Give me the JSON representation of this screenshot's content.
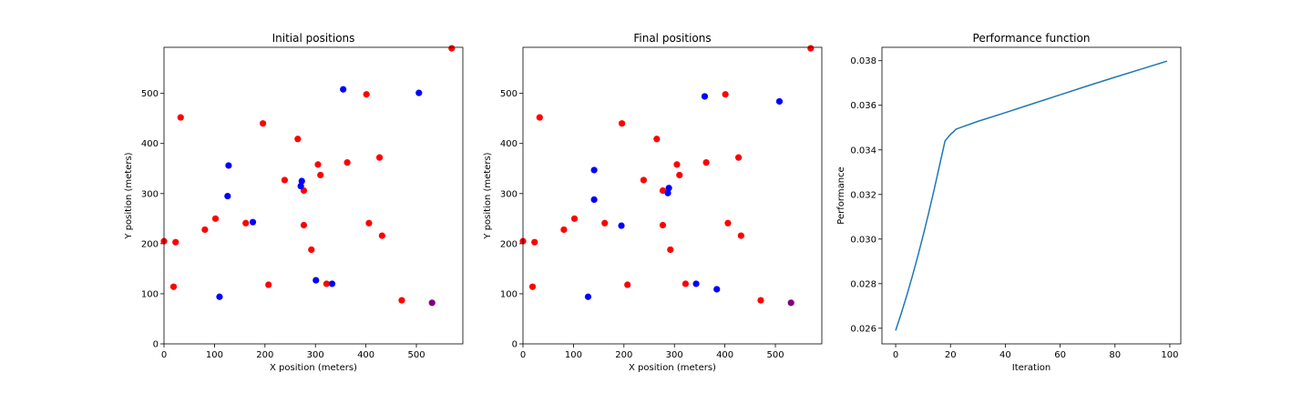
{
  "chart_data": [
    {
      "type": "scatter",
      "title": "Initial positions",
      "xlabel": "X position (meters)",
      "ylabel": "Y position (meters)",
      "xlim": [
        0,
        592
      ],
      "ylim": [
        0,
        592
      ],
      "xticks": [
        0,
        100,
        200,
        300,
        400,
        500
      ],
      "yticks": [
        0,
        100,
        200,
        300,
        400,
        500
      ],
      "grid": false,
      "colors": {
        "red": "#ff0000",
        "blue": "#0000ff",
        "purple": "#800080"
      },
      "points": [
        {
          "x": 570,
          "y": 590,
          "color": "red"
        },
        {
          "x": 33,
          "y": 452,
          "color": "red"
        },
        {
          "x": 196,
          "y": 440,
          "color": "red"
        },
        {
          "x": 401,
          "y": 498,
          "color": "red"
        },
        {
          "x": 265,
          "y": 409,
          "color": "red"
        },
        {
          "x": 427,
          "y": 372,
          "color": "red"
        },
        {
          "x": 363,
          "y": 362,
          "color": "red"
        },
        {
          "x": 305,
          "y": 358,
          "color": "red"
        },
        {
          "x": 310,
          "y": 337,
          "color": "red"
        },
        {
          "x": 239,
          "y": 327,
          "color": "red"
        },
        {
          "x": 277,
          "y": 306,
          "color": "red"
        },
        {
          "x": 102,
          "y": 250,
          "color": "red"
        },
        {
          "x": 162,
          "y": 241,
          "color": "red"
        },
        {
          "x": 277,
          "y": 237,
          "color": "red"
        },
        {
          "x": 406,
          "y": 241,
          "color": "red"
        },
        {
          "x": 81,
          "y": 228,
          "color": "red"
        },
        {
          "x": 432,
          "y": 216,
          "color": "red"
        },
        {
          "x": 0,
          "y": 205,
          "color": "red"
        },
        {
          "x": 23,
          "y": 203,
          "color": "red"
        },
        {
          "x": 292,
          "y": 188,
          "color": "red"
        },
        {
          "x": 19,
          "y": 114,
          "color": "red"
        },
        {
          "x": 207,
          "y": 118,
          "color": "red"
        },
        {
          "x": 322,
          "y": 120,
          "color": "red"
        },
        {
          "x": 471,
          "y": 87,
          "color": "red"
        },
        {
          "x": 355,
          "y": 508,
          "color": "blue"
        },
        {
          "x": 505,
          "y": 501,
          "color": "blue"
        },
        {
          "x": 128,
          "y": 356,
          "color": "blue"
        },
        {
          "x": 273,
          "y": 325,
          "color": "blue"
        },
        {
          "x": 271,
          "y": 315,
          "color": "blue"
        },
        {
          "x": 126,
          "y": 295,
          "color": "blue"
        },
        {
          "x": 176,
          "y": 243,
          "color": "blue"
        },
        {
          "x": 301,
          "y": 127,
          "color": "blue"
        },
        {
          "x": 333,
          "y": 120,
          "color": "blue"
        },
        {
          "x": 110,
          "y": 94,
          "color": "blue"
        },
        {
          "x": 531,
          "y": 82,
          "color": "purple"
        }
      ]
    },
    {
      "type": "scatter",
      "title": "Final positions",
      "xlabel": "X position (meters)",
      "ylabel": "Y position (meters)",
      "xlim": [
        0,
        592
      ],
      "ylim": [
        0,
        592
      ],
      "xticks": [
        0,
        100,
        200,
        300,
        400,
        500
      ],
      "yticks": [
        0,
        100,
        200,
        300,
        400,
        500
      ],
      "grid": false,
      "colors": {
        "red": "#ff0000",
        "blue": "#0000ff",
        "purple": "#800080"
      },
      "points": [
        {
          "x": 570,
          "y": 590,
          "color": "red"
        },
        {
          "x": 33,
          "y": 452,
          "color": "red"
        },
        {
          "x": 196,
          "y": 440,
          "color": "red"
        },
        {
          "x": 401,
          "y": 498,
          "color": "red"
        },
        {
          "x": 265,
          "y": 409,
          "color": "red"
        },
        {
          "x": 427,
          "y": 372,
          "color": "red"
        },
        {
          "x": 363,
          "y": 362,
          "color": "red"
        },
        {
          "x": 305,
          "y": 358,
          "color": "red"
        },
        {
          "x": 310,
          "y": 337,
          "color": "red"
        },
        {
          "x": 239,
          "y": 327,
          "color": "red"
        },
        {
          "x": 277,
          "y": 306,
          "color": "red"
        },
        {
          "x": 102,
          "y": 250,
          "color": "red"
        },
        {
          "x": 162,
          "y": 241,
          "color": "red"
        },
        {
          "x": 277,
          "y": 237,
          "color": "red"
        },
        {
          "x": 406,
          "y": 241,
          "color": "red"
        },
        {
          "x": 81,
          "y": 228,
          "color": "red"
        },
        {
          "x": 432,
          "y": 216,
          "color": "red"
        },
        {
          "x": 0,
          "y": 205,
          "color": "red"
        },
        {
          "x": 23,
          "y": 203,
          "color": "red"
        },
        {
          "x": 292,
          "y": 188,
          "color": "red"
        },
        {
          "x": 19,
          "y": 114,
          "color": "red"
        },
        {
          "x": 207,
          "y": 118,
          "color": "red"
        },
        {
          "x": 322,
          "y": 120,
          "color": "red"
        },
        {
          "x": 471,
          "y": 87,
          "color": "red"
        },
        {
          "x": 360,
          "y": 494,
          "color": "blue"
        },
        {
          "x": 508,
          "y": 484,
          "color": "blue"
        },
        {
          "x": 141,
          "y": 347,
          "color": "blue"
        },
        {
          "x": 289,
          "y": 311,
          "color": "blue"
        },
        {
          "x": 287,
          "y": 301,
          "color": "blue"
        },
        {
          "x": 141,
          "y": 288,
          "color": "blue"
        },
        {
          "x": 195,
          "y": 236,
          "color": "blue"
        },
        {
          "x": 343,
          "y": 120,
          "color": "blue"
        },
        {
          "x": 384,
          "y": 109,
          "color": "blue"
        },
        {
          "x": 129,
          "y": 94,
          "color": "blue"
        },
        {
          "x": 531,
          "y": 82,
          "color": "purple"
        }
      ]
    },
    {
      "type": "line",
      "title": "Performance function",
      "xlabel": "Iteration",
      "ylabel": "Performance",
      "xlim": [
        -5,
        104
      ],
      "ylim": [
        0.0253,
        0.0386
      ],
      "xticks": [
        0,
        20,
        40,
        60,
        80,
        100
      ],
      "yticks": [
        0.026,
        0.028,
        0.03,
        0.032,
        0.034,
        0.036,
        0.038
      ],
      "ytick_labels": [
        "0.026",
        "0.028",
        "0.030",
        "0.032",
        "0.034",
        "0.036",
        "0.038"
      ],
      "grid": false,
      "line_color": "#1f77b4",
      "series": [
        {
          "x": [
            0,
            2,
            4,
            6,
            8,
            10,
            12,
            14,
            16,
            18,
            20,
            21,
            22,
            30,
            40,
            50,
            60,
            70,
            80,
            90,
            99
          ],
          "values": [
            0.0259,
            0.02665,
            0.02745,
            0.0283,
            0.0292,
            0.03015,
            0.03115,
            0.0322,
            0.0333,
            0.0344,
            0.0347,
            0.0348,
            0.03493,
            0.03528,
            0.03567,
            0.03607,
            0.03647,
            0.03687,
            0.03726,
            0.03764,
            0.03798
          ]
        }
      ]
    }
  ]
}
